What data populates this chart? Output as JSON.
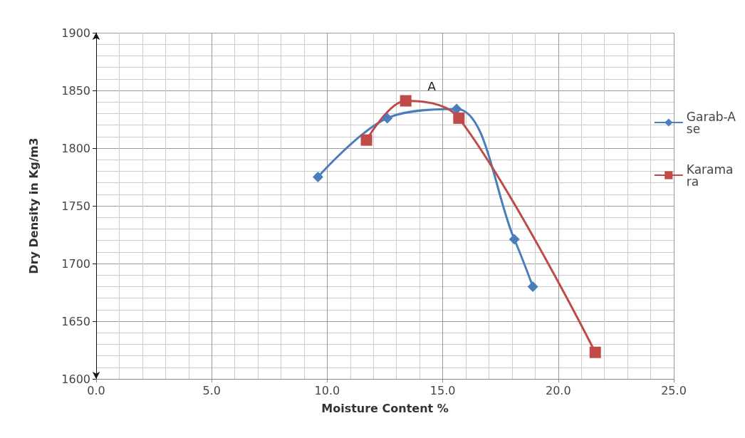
{
  "chart_data": {
    "type": "line",
    "xlabel": "Moisture Content %",
    "ylabel": "Dry Density in Kg/m3",
    "xlim": [
      0,
      25
    ],
    "xticks": [
      {
        "value": 0,
        "label": "0.0"
      },
      {
        "value": 5,
        "label": "5.0"
      },
      {
        "value": 10,
        "label": "10.0"
      },
      {
        "value": 15,
        "label": "15.0"
      },
      {
        "value": 20,
        "label": "20.0"
      },
      {
        "value": 25,
        "label": "25.0"
      }
    ],
    "ylim": [
      1600,
      1900
    ],
    "yticks": [
      1600,
      1650,
      1700,
      1750,
      1800,
      1850,
      1900
    ],
    "grid": true,
    "legend": "right",
    "series": [
      {
        "name": "Garab-Ase",
        "color": "#4a7ebb",
        "marker": "diamond",
        "x": [
          9.6,
          12.6,
          15.6,
          18.1,
          18.9
        ],
        "values": [
          1775,
          1826,
          1834,
          1721,
          1680
        ]
      },
      {
        "name": "Karamara",
        "color": "#be4b48",
        "marker": "square",
        "x": [
          11.7,
          13.4,
          15.7,
          21.6
        ],
        "values": [
          1807,
          1841,
          1826,
          1623
        ]
      }
    ],
    "annotations": [
      "A"
    ]
  }
}
